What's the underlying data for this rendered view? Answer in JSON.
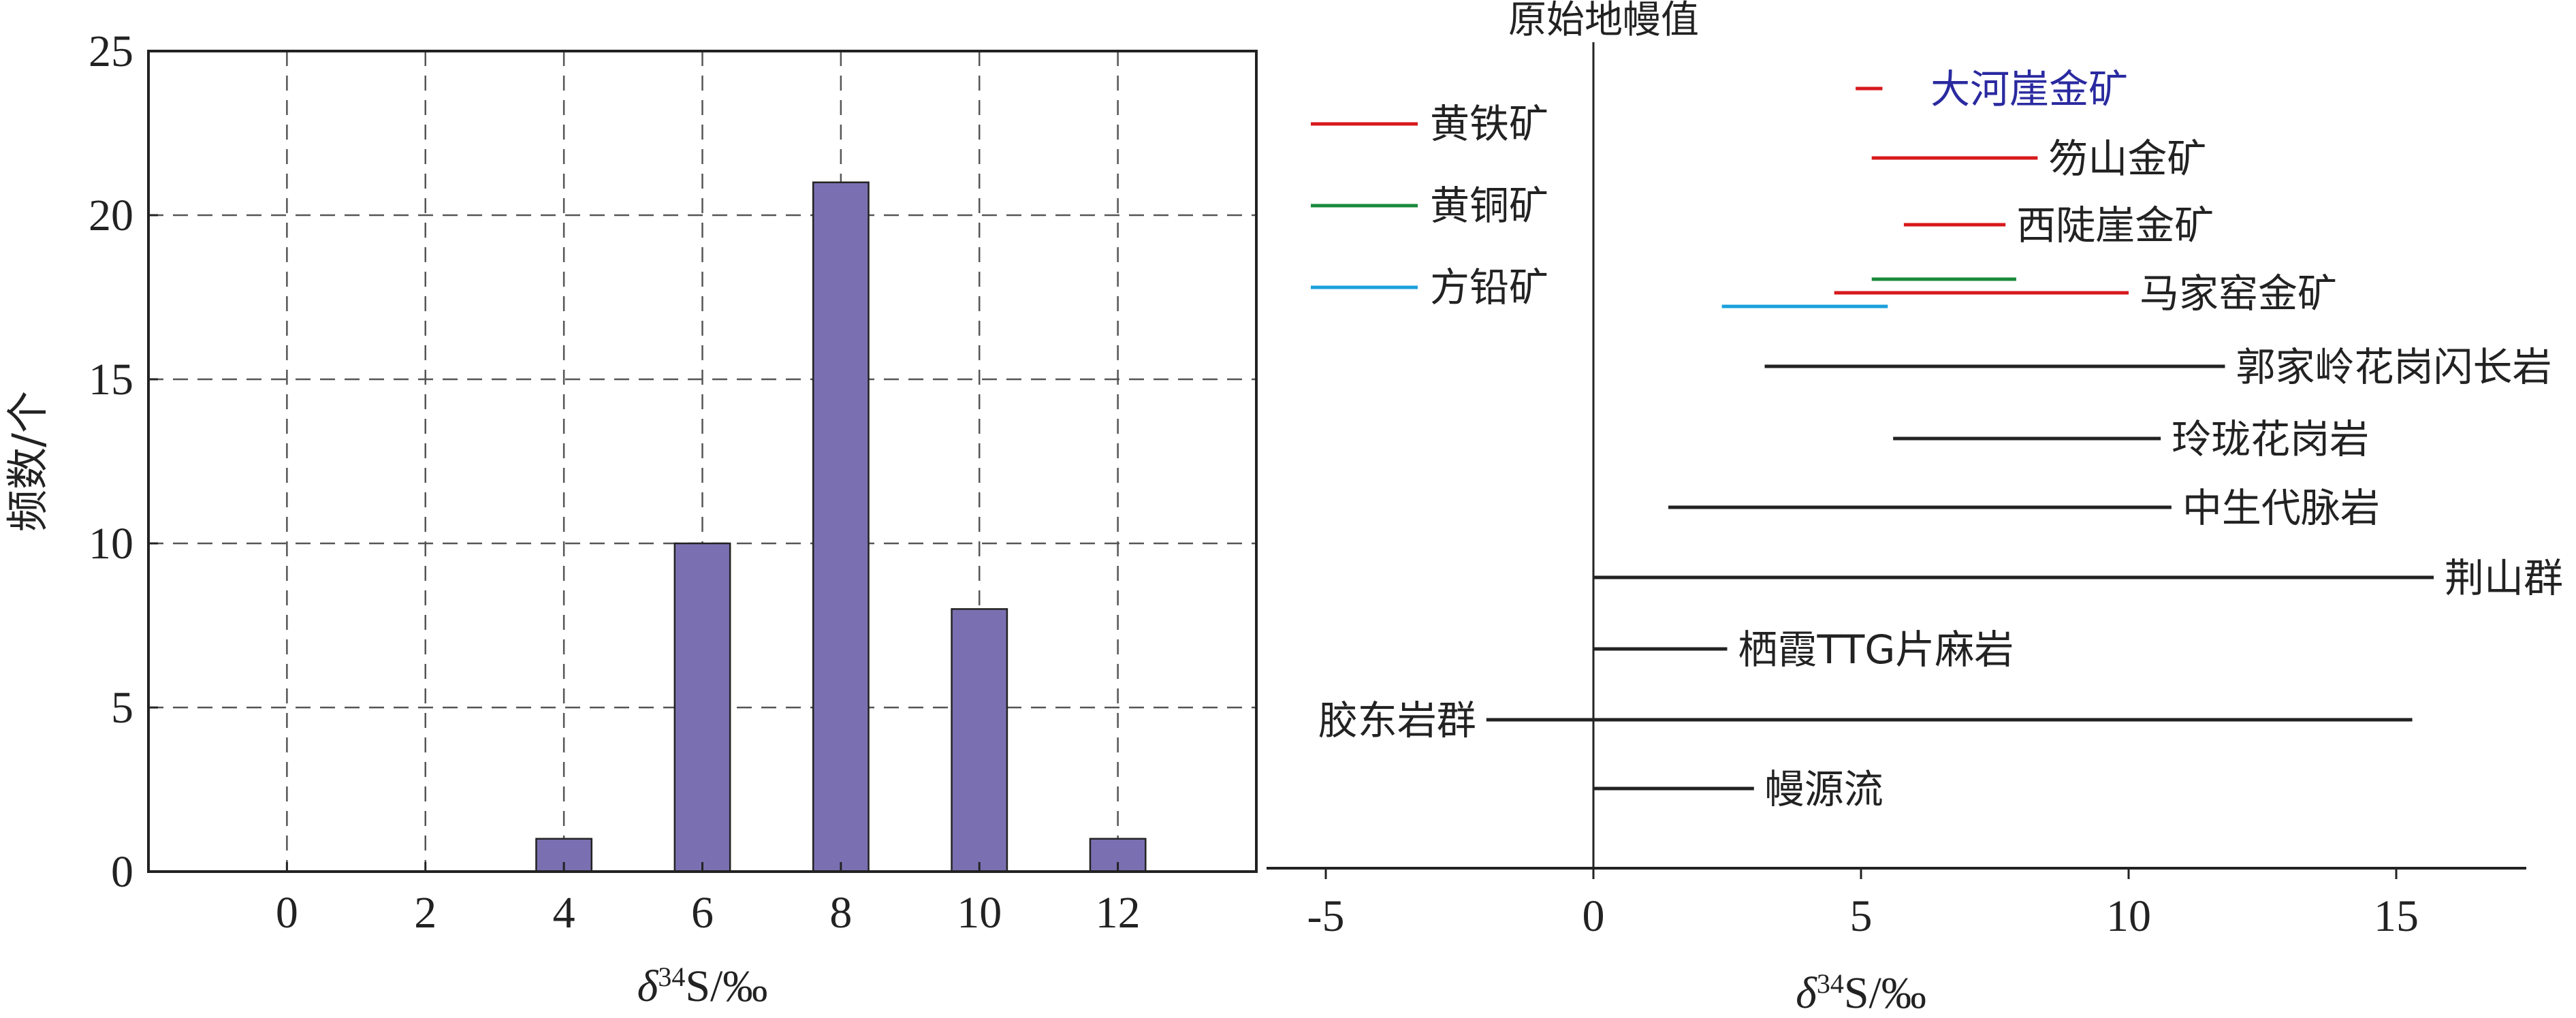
{
  "chart_data": [
    {
      "type": "bar",
      "xlabel": "δ34S/‰",
      "ylabel": "频数/个",
      "x_ticks": [
        0,
        2,
        4,
        6,
        8,
        10,
        12
      ],
      "y_ticks": [
        0,
        5,
        10,
        15,
        20,
        25
      ],
      "xlim": [
        -2,
        14
      ],
      "ylim": [
        0,
        25
      ],
      "grid": true,
      "bar_color": "#7a70b1",
      "categories": [
        4,
        6,
        8,
        10,
        12
      ],
      "values": [
        1,
        10,
        21,
        8,
        1
      ]
    },
    {
      "type": "range",
      "xlabel": "δ34S/‰",
      "x_ticks": [
        -5,
        0,
        5,
        10,
        15
      ],
      "xlim": [
        -6,
        17.5
      ],
      "reference_line": {
        "x": 0,
        "label": "原始地幔值"
      },
      "legend_position": "top-left",
      "legend": [
        {
          "label": "黄铁矿",
          "color": "#d7191c"
        },
        {
          "label": "黄铜矿",
          "color": "#1a8a3a"
        },
        {
          "label": "方铅矿",
          "color": "#1aa0dc"
        }
      ],
      "ranges": [
        {
          "label": "大河崖金矿",
          "label_color": "#2a2aa0",
          "segments": [
            {
              "mineral": "黄铁矿",
              "min": 4.9,
              "max": 5.4
            }
          ]
        },
        {
          "label": "笏山金矿",
          "segments": [
            {
              "mineral": "黄铁矿",
              "min": 5.2,
              "max": 8.3
            }
          ]
        },
        {
          "label": "西陡崖金矿",
          "segments": [
            {
              "mineral": "黄铁矿",
              "min": 5.8,
              "max": 7.7
            }
          ]
        },
        {
          "label": "马家窑金矿",
          "segments": [
            {
              "mineral": "黄铜矿",
              "min": 5.2,
              "max": 7.9
            },
            {
              "mineral": "黄铁矿",
              "min": 4.5,
              "max": 10.0
            },
            {
              "mineral": "方铅矿",
              "min": 2.4,
              "max": 5.5
            }
          ]
        },
        {
          "label": "郭家岭花岗闪长岩",
          "segments": [
            {
              "min": 3.2,
              "max": 11.8
            }
          ]
        },
        {
          "label": "玲珑花岗岩",
          "segments": [
            {
              "min": 5.6,
              "max": 10.6
            }
          ]
        },
        {
          "label": "中生代脉岩",
          "segments": [
            {
              "min": 1.4,
              "max": 10.8
            }
          ]
        },
        {
          "label": "荆山群",
          "segments": [
            {
              "min": 0.0,
              "max": 15.7
            }
          ]
        },
        {
          "label": "栖霞TTG片麻岩",
          "segments": [
            {
              "min": 0.0,
              "max": 2.5
            }
          ]
        },
        {
          "label": "胶东岩群",
          "segments": [
            {
              "min": -2.0,
              "max": 15.3
            }
          ]
        },
        {
          "label": "幔源流",
          "segments": [
            {
              "min": 0.0,
              "max": 3.0
            }
          ]
        }
      ]
    }
  ]
}
